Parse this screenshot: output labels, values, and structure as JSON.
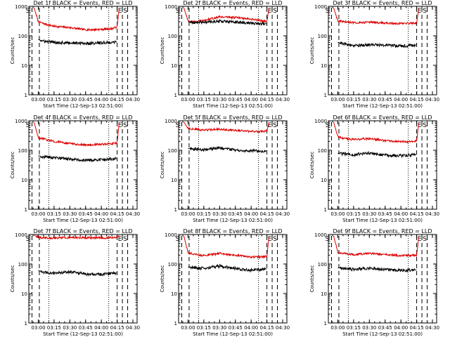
{
  "colors": {
    "events": "#000000",
    "lld": "#dd0000",
    "axis": "#000000",
    "background": "#ffffff"
  },
  "chart_data": {
    "type": "line",
    "ylabel": "Counts/sec",
    "xlabel": "Start Time (12-Sep-13 02:51:00)",
    "yscale": "log",
    "ylim": [
      1,
      1000
    ],
    "y_ticks": [
      "1",
      "10",
      "100",
      "1000"
    ],
    "x_ticks": [
      "03:00",
      "03:15",
      "03:30",
      "03:45",
      "04:00",
      "04:15",
      "04:30"
    ],
    "grid": false,
    "panels": [
      {
        "title": "Det 1f BLACK = Events, RED = LLD",
        "markers": [
          {
            "label": "S",
            "x": "02:54",
            "style": "dashed",
            "label_pos": "left"
          },
          {
            "label": "",
            "x": "03:01",
            "style": "dashed"
          },
          {
            "label": "",
            "x": "03:10",
            "style": "dotted"
          },
          {
            "label": "",
            "x": "04:07",
            "style": "dotted"
          },
          {
            "label": "E",
            "x": "04:15",
            "style": "dashed",
            "label_pos": "right"
          },
          {
            "label": "S",
            "x": "04:20",
            "style": "dashed",
            "label_pos": "right"
          },
          {
            "label": "",
            "x": "04:25",
            "style": "dashed"
          }
        ],
        "series": [
          {
            "role": "lld",
            "x": [
              "02:56",
              "03:00",
              "03:05",
              "03:15",
              "03:30",
              "03:45",
              "04:00",
              "04:10",
              "04:15",
              "04:17"
            ],
            "values": [
              900,
              300,
              260,
              210,
              190,
              160,
              165,
              175,
              200,
              900
            ]
          },
          {
            "role": "events",
            "x": [
              "03:00",
              "03:05",
              "03:15",
              "03:30",
              "03:45",
              "04:00",
              "04:10",
              "04:15"
            ],
            "values": [
              75,
              65,
              60,
              58,
              55,
              58,
              60,
              62
            ]
          }
        ]
      },
      {
        "title": "Det 2f BLACK = Events, RED = LLD",
        "markers": [
          {
            "label": "S",
            "x": "02:54",
            "style": "dashed",
            "label_pos": "left"
          },
          {
            "label": "",
            "x": "03:01",
            "style": "dashed"
          },
          {
            "label": "",
            "x": "03:10",
            "style": "dotted"
          },
          {
            "label": "",
            "x": "04:07",
            "style": "dotted"
          },
          {
            "label": "E",
            "x": "04:15",
            "style": "dashed",
            "label_pos": "right"
          },
          {
            "label": "S",
            "x": "04:20",
            "style": "dashed",
            "label_pos": "right"
          },
          {
            "label": "",
            "x": "04:25",
            "style": "dashed"
          }
        ],
        "series": [
          {
            "role": "lld",
            "x": [
              "02:56",
              "03:00",
              "03:05",
              "03:15",
              "03:30",
              "03:45",
              "04:00",
              "04:10",
              "04:15",
              "04:17"
            ],
            "values": [
              900,
              320,
              300,
              330,
              440,
              420,
              360,
              330,
              300,
              900
            ]
          },
          {
            "role": "events",
            "x": [
              "03:00",
              "03:05",
              "03:15",
              "03:30",
              "03:45",
              "04:00",
              "04:10",
              "04:15"
            ],
            "values": [
              300,
              280,
              290,
              310,
              290,
              270,
              260,
              255
            ]
          }
        ]
      },
      {
        "title": "Det 3f BLACK = Events, RED = LLD",
        "markers": [
          {
            "label": "S",
            "x": "02:54",
            "style": "dashed",
            "label_pos": "left"
          },
          {
            "label": "",
            "x": "03:01",
            "style": "dashed"
          },
          {
            "label": "",
            "x": "03:10",
            "style": "dotted"
          },
          {
            "label": "",
            "x": "04:07",
            "style": "dotted"
          },
          {
            "label": "E",
            "x": "04:15",
            "style": "dashed",
            "label_pos": "right"
          },
          {
            "label": "S",
            "x": "04:20",
            "style": "dashed",
            "label_pos": "right"
          },
          {
            "label": "",
            "x": "04:25",
            "style": "dashed"
          }
        ],
        "series": [
          {
            "role": "lld",
            "x": [
              "02:56",
              "03:00",
              "03:05",
              "03:15",
              "03:30",
              "03:45",
              "04:00",
              "04:10",
              "04:15",
              "04:17"
            ],
            "values": [
              900,
              320,
              300,
              280,
              290,
              270,
              260,
              265,
              270,
              900
            ]
          },
          {
            "role": "events",
            "x": [
              "03:00",
              "03:05",
              "03:15",
              "03:30",
              "03:45",
              "04:00",
              "04:10",
              "04:15"
            ],
            "values": [
              60,
              55,
              45,
              50,
              48,
              45,
              47,
              50
            ]
          }
        ]
      },
      {
        "title": "Det 4f BLACK = Events, RED = LLD",
        "markers": [
          {
            "label": "S",
            "x": "02:54",
            "style": "dashed",
            "label_pos": "left"
          },
          {
            "label": "",
            "x": "03:01",
            "style": "dashed"
          },
          {
            "label": "",
            "x": "03:10",
            "style": "dotted"
          },
          {
            "label": "",
            "x": "04:07",
            "style": "dotted"
          },
          {
            "label": "E",
            "x": "04:15",
            "style": "dashed",
            "label_pos": "right"
          },
          {
            "label": "S",
            "x": "04:20",
            "style": "dashed",
            "label_pos": "right"
          },
          {
            "label": "",
            "x": "04:25",
            "style": "dashed"
          }
        ],
        "series": [
          {
            "role": "lld",
            "x": [
              "02:56",
              "03:00",
              "03:05",
              "03:15",
              "03:30",
              "03:45",
              "04:00",
              "04:10",
              "04:15",
              "04:17"
            ],
            "values": [
              900,
              260,
              240,
              200,
              170,
              150,
              160,
              165,
              180,
              900
            ]
          },
          {
            "role": "events",
            "x": [
              "03:00",
              "03:05",
              "03:15",
              "03:30",
              "03:45",
              "04:00",
              "04:10",
              "04:15"
            ],
            "values": [
              65,
              60,
              55,
              50,
              45,
              48,
              50,
              52
            ]
          }
        ]
      },
      {
        "title": "Det 5f BLACK = Events, RED = LLD",
        "markers": [
          {
            "label": "S",
            "x": "02:54",
            "style": "dashed",
            "label_pos": "left"
          },
          {
            "label": "",
            "x": "03:01",
            "style": "dashed"
          },
          {
            "label": "",
            "x": "03:10",
            "style": "dotted"
          },
          {
            "label": "",
            "x": "04:07",
            "style": "dotted"
          },
          {
            "label": "E",
            "x": "04:15",
            "style": "dashed",
            "label_pos": "right"
          },
          {
            "label": "S",
            "x": "04:20",
            "style": "dashed",
            "label_pos": "right"
          },
          {
            "label": "",
            "x": "04:25",
            "style": "dashed"
          }
        ],
        "series": [
          {
            "role": "lld",
            "x": [
              "02:56",
              "03:00",
              "03:05",
              "03:15",
              "03:30",
              "03:45",
              "04:00",
              "04:10",
              "04:15",
              "04:17"
            ],
            "values": [
              900,
              560,
              520,
              480,
              520,
              470,
              440,
              430,
              450,
              900
            ]
          },
          {
            "role": "events",
            "x": [
              "03:00",
              "03:05",
              "03:15",
              "03:30",
              "03:45",
              "04:00",
              "04:10",
              "04:15"
            ],
            "values": [
              115,
              110,
              105,
              120,
              100,
              95,
              92,
              95
            ]
          }
        ]
      },
      {
        "title": "Det 6f BLACK = Events, RED = LLD",
        "markers": [
          {
            "label": "S",
            "x": "02:54",
            "style": "dashed",
            "label_pos": "left"
          },
          {
            "label": "",
            "x": "03:01",
            "style": "dashed"
          },
          {
            "label": "",
            "x": "03:10",
            "style": "dotted"
          },
          {
            "label": "",
            "x": "04:07",
            "style": "dotted"
          },
          {
            "label": "E",
            "x": "04:15",
            "style": "dashed",
            "label_pos": "right"
          },
          {
            "label": "S",
            "x": "04:20",
            "style": "dashed",
            "label_pos": "right"
          },
          {
            "label": "",
            "x": "04:25",
            "style": "dashed"
          }
        ],
        "series": [
          {
            "role": "lld",
            "x": [
              "02:56",
              "03:00",
              "03:05",
              "03:15",
              "03:30",
              "03:45",
              "04:00",
              "04:10",
              "04:15",
              "04:17"
            ],
            "values": [
              900,
              300,
              260,
              230,
              250,
              210,
              200,
              195,
              205,
              900
            ]
          },
          {
            "role": "events",
            "x": [
              "03:00",
              "03:05",
              "03:15",
              "03:30",
              "03:45",
              "04:00",
              "04:10",
              "04:15"
            ],
            "values": [
              80,
              75,
              70,
              80,
              68,
              65,
              70,
              72
            ]
          }
        ]
      },
      {
        "title": "Det 7f BLACK = Events, RED = LLD",
        "markers": [
          {
            "label": "S",
            "x": "02:54",
            "style": "dashed",
            "label_pos": "left"
          },
          {
            "label": "",
            "x": "03:01",
            "style": "dashed"
          },
          {
            "label": "",
            "x": "03:10",
            "style": "dotted"
          },
          {
            "label": "",
            "x": "04:07",
            "style": "dotted"
          },
          {
            "label": "E",
            "x": "04:15",
            "style": "dashed",
            "label_pos": "right"
          },
          {
            "label": "S",
            "x": "04:20",
            "style": "dashed",
            "label_pos": "right"
          },
          {
            "label": "",
            "x": "04:25",
            "style": "dashed"
          }
        ],
        "series": [
          {
            "role": "lld",
            "x": [
              "02:56",
              "03:00",
              "03:05",
              "03:15",
              "03:30",
              "03:45",
              "04:00",
              "04:10",
              "04:15",
              "04:17"
            ],
            "values": [
              950,
              800,
              780,
              760,
              800,
              780,
              770,
              780,
              790,
              950
            ]
          },
          {
            "role": "events",
            "x": [
              "03:00",
              "03:05",
              "03:15",
              "03:30",
              "03:45",
              "04:00",
              "04:10",
              "04:15"
            ],
            "values": [
              60,
              52,
              48,
              55,
              45,
              44,
              48,
              50
            ]
          }
        ]
      },
      {
        "title": "Det 8f BLACK = Events, RED = LLD",
        "markers": [
          {
            "label": "S",
            "x": "02:54",
            "style": "dashed",
            "label_pos": "left"
          },
          {
            "label": "",
            "x": "03:01",
            "style": "dashed"
          },
          {
            "label": "",
            "x": "03:10",
            "style": "dotted"
          },
          {
            "label": "",
            "x": "04:07",
            "style": "dotted"
          },
          {
            "label": "E",
            "x": "04:15",
            "style": "dashed",
            "label_pos": "right"
          },
          {
            "label": "S",
            "x": "04:20",
            "style": "dashed",
            "label_pos": "right"
          },
          {
            "label": "",
            "x": "04:25",
            "style": "dashed"
          }
        ],
        "series": [
          {
            "role": "lld",
            "x": [
              "02:56",
              "03:00",
              "03:05",
              "03:15",
              "03:30",
              "03:45",
              "04:00",
              "04:10",
              "04:15",
              "04:17"
            ],
            "values": [
              900,
              240,
              220,
              190,
              230,
              200,
              170,
              175,
              180,
              900
            ]
          },
          {
            "role": "events",
            "x": [
              "03:00",
              "03:05",
              "03:15",
              "03:30",
              "03:45",
              "04:00",
              "04:10",
              "04:15"
            ],
            "values": [
              80,
              75,
              70,
              85,
              70,
              62,
              65,
              68
            ]
          }
        ]
      },
      {
        "title": "Det 9f BLACK = Events, RED = LLD",
        "markers": [
          {
            "label": "S",
            "x": "02:54",
            "style": "dashed",
            "label_pos": "left"
          },
          {
            "label": "",
            "x": "03:01",
            "style": "dashed"
          },
          {
            "label": "",
            "x": "03:10",
            "style": "dotted"
          },
          {
            "label": "",
            "x": "04:07",
            "style": "dotted"
          },
          {
            "label": "E",
            "x": "04:15",
            "style": "dashed",
            "label_pos": "right"
          },
          {
            "label": "S",
            "x": "04:20",
            "style": "dashed",
            "label_pos": "right"
          },
          {
            "label": "",
            "x": "04:25",
            "style": "dashed"
          }
        ],
        "series": [
          {
            "role": "lld",
            "x": [
              "02:56",
              "03:00",
              "03:05",
              "03:15",
              "03:30",
              "03:45",
              "04:00",
              "04:10",
              "04:15",
              "04:17"
            ],
            "values": [
              900,
              250,
              230,
              210,
              230,
              205,
              195,
              195,
              200,
              900
            ]
          },
          {
            "role": "events",
            "x": [
              "03:00",
              "03:05",
              "03:15",
              "03:30",
              "03:45",
              "04:00",
              "04:10",
              "04:15"
            ],
            "values": [
              75,
              70,
              65,
              72,
              65,
              60,
              62,
              64
            ]
          }
        ]
      }
    ]
  }
}
